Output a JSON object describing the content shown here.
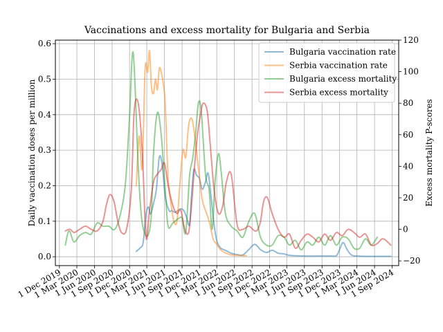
{
  "chart_data": {
    "type": "line",
    "title": "Vaccinations and excess mortality for Bulgaria and Serbia",
    "ylabel": "Daily vaccination doses per million",
    "ylabel_right": "Excess mortality P-scores",
    "ylim": [
      -0.025,
      0.61
    ],
    "ylim_right": [
      -23,
      120
    ],
    "x_range": [
      "2019-11-10",
      "2024-10-05"
    ],
    "grid": true,
    "legend_position": "top-right",
    "x_ticks": [
      "2019-12-01",
      "2020-03-01",
      "2020-06-01",
      "2020-09-01",
      "2020-12-01",
      "2021-03-01",
      "2021-06-01",
      "2021-09-01",
      "2021-12-01",
      "2022-03-01",
      "2022-06-01",
      "2022-09-01",
      "2022-12-01",
      "2023-03-01",
      "2023-06-01",
      "2023-09-01",
      "2023-12-01",
      "2024-03-01",
      "2024-06-01",
      "2024-09-01"
    ],
    "x_tick_labels": [
      "1 Dec 2019",
      "1 Mar 2020",
      "1 Jun 2020",
      "1 Sep 2020",
      "1 Dec 2020",
      "1 Mar 2021",
      "1 Jun 2021",
      "1 Sep 2021",
      "1 Dec 2021",
      "1 Mar 2022",
      "1 Jun 2022",
      "1 Sep 2022",
      "1 Dec 2022",
      "1 Mar 2023",
      "1 Jun 2023",
      "1 Sep 2023",
      "1 Dec 2023",
      "1 Mar 2024",
      "1 Jun 2024",
      "1 Sep 2024"
    ],
    "y_ticks": [
      0.0,
      0.1,
      0.2,
      0.3,
      0.4,
      0.5,
      0.6
    ],
    "y_tick_labels": [
      "0.0",
      "0.1",
      "0.2",
      "0.3",
      "0.4",
      "0.5",
      "0.6"
    ],
    "y_ticks_right": [
      -20,
      0,
      20,
      40,
      60,
      80,
      100,
      120
    ],
    "y_tick_labels_right": [
      "−20",
      "0",
      "20",
      "40",
      "60",
      "80",
      "100",
      "120"
    ],
    "series": [
      {
        "name": "Bulgaria vaccination rate",
        "axis": "left",
        "color": "#1f77b4",
        "x": [
          "2021-01-05",
          "2021-01-25",
          "2021-02-10",
          "2021-02-25",
          "2021-03-10",
          "2021-03-20",
          "2021-04-05",
          "2021-04-20",
          "2021-05-05",
          "2021-05-20",
          "2021-06-05",
          "2021-06-25",
          "2021-07-10",
          "2021-07-25",
          "2021-08-10",
          "2021-08-25",
          "2021-09-10",
          "2021-09-25",
          "2021-10-10",
          "2021-10-20",
          "2021-11-01",
          "2021-11-15",
          "2021-12-01",
          "2021-12-15",
          "2022-01-01",
          "2022-01-15",
          "2022-02-01",
          "2022-02-15",
          "2022-03-01",
          "2022-03-20",
          "2022-04-15",
          "2022-05-15",
          "2022-06-15",
          "2022-07-15",
          "2022-08-15",
          "2022-09-15",
          "2022-10-15",
          "2022-11-15",
          "2022-12-15",
          "2023-01-15",
          "2023-02-15",
          "2023-03-15",
          "2023-06-01",
          "2023-09-01",
          "2023-10-15",
          "2023-11-15",
          "2023-12-01",
          "2023-12-20",
          "2024-01-10",
          "2024-02-01",
          "2024-03-01",
          "2024-05-01",
          "2024-08-25"
        ],
        "y": [
          0.015,
          0.025,
          0.04,
          0.12,
          0.14,
          0.12,
          0.15,
          0.19,
          0.28,
          0.26,
          0.17,
          0.13,
          0.13,
          0.125,
          0.13,
          0.135,
          0.13,
          0.11,
          0.09,
          0.17,
          0.245,
          0.23,
          0.22,
          0.19,
          0.21,
          0.235,
          0.16,
          0.09,
          0.045,
          0.025,
          0.018,
          0.01,
          0.006,
          0.005,
          0.02,
          0.035,
          0.02,
          0.012,
          0.018,
          0.01,
          0.008,
          0.004,
          0.002,
          0.002,
          0.002,
          0.003,
          0.02,
          0.04,
          0.02,
          0.005,
          0.002,
          0.001,
          0.001
        ]
      },
      {
        "name": "Serbia vaccination rate",
        "axis": "left",
        "color": "#ff7f0e",
        "x": [
          "2021-01-05",
          "2021-01-20",
          "2021-02-05",
          "2021-02-20",
          "2021-03-05",
          "2021-03-15",
          "2021-03-25",
          "2021-04-05",
          "2021-04-15",
          "2021-04-25",
          "2021-05-05",
          "2021-05-15",
          "2021-05-25",
          "2021-06-05",
          "2021-06-20",
          "2021-07-05",
          "2021-07-20",
          "2021-08-05",
          "2021-08-20",
          "2021-09-05",
          "2021-09-20",
          "2021-10-05",
          "2021-10-20",
          "2021-11-01",
          "2021-11-15",
          "2021-12-01",
          "2021-12-15",
          "2022-01-01",
          "2022-01-20",
          "2022-02-10",
          "2022-03-01",
          "2022-03-20",
          "2022-04-10",
          "2022-05-01",
          "2022-05-20",
          "2022-06-15",
          "2022-07-15",
          "2022-08-01"
        ],
        "y": [
          0.2,
          0.34,
          0.25,
          0.53,
          0.52,
          0.58,
          0.48,
          0.46,
          0.5,
          0.47,
          0.53,
          0.52,
          0.49,
          0.43,
          0.22,
          0.15,
          0.1,
          0.1,
          0.2,
          0.3,
          0.28,
          0.37,
          0.39,
          0.36,
          0.3,
          0.22,
          0.16,
          0.13,
          0.1,
          0.05,
          0.035,
          0.02,
          0.012,
          0.007,
          0.005,
          0.004,
          0.003,
          0.003
        ]
      },
      {
        "name": "Bulgaria excess mortality",
        "axis": "right",
        "color": "#2ca02c",
        "x": [
          "2020-01-01",
          "2020-01-20",
          "2020-02-15",
          "2020-03-15",
          "2020-04-15",
          "2020-05-15",
          "2020-06-15",
          "2020-07-15",
          "2020-08-15",
          "2020-09-15",
          "2020-10-15",
          "2020-11-10",
          "2020-12-01",
          "2020-12-20",
          "2021-01-15",
          "2021-02-01",
          "2021-02-20",
          "2021-03-10",
          "2021-03-25",
          "2021-04-05",
          "2021-04-25",
          "2021-05-15",
          "2021-06-05",
          "2021-06-20",
          "2021-07-15",
          "2021-08-15",
          "2021-09-01",
          "2021-09-20",
          "2021-10-10",
          "2021-10-25",
          "2021-11-10",
          "2021-11-25",
          "2021-12-10",
          "2022-01-01",
          "2022-01-20",
          "2022-02-05",
          "2022-02-20",
          "2022-03-10",
          "2022-03-25",
          "2022-04-15",
          "2022-05-15",
          "2022-06-15",
          "2022-07-15",
          "2022-08-15",
          "2022-09-15",
          "2022-10-15",
          "2022-11-15",
          "2022-12-15",
          "2023-01-15",
          "2023-02-15",
          "2023-03-15",
          "2023-04-15",
          "2023-05-15",
          "2023-06-15",
          "2023-07-15",
          "2023-08-15",
          "2023-09-15",
          "2023-10-15",
          "2023-11-15",
          "2023-12-15",
          "2024-01-15",
          "2024-02-15",
          "2024-03-15",
          "2024-04-15",
          "2024-05-15",
          "2024-06-15"
        ],
        "y": [
          -10,
          -1,
          -8,
          -4,
          -2,
          -3,
          4,
          2,
          2,
          0,
          10,
          30,
          72,
          112,
          40,
          8,
          -3,
          -3,
          10,
          48,
          74,
          60,
          25,
          2,
          4,
          7,
          7,
          -2,
          34,
          44,
          60,
          80,
          75,
          35,
          25,
          0,
          30,
          48,
          35,
          10,
          2,
          -1,
          -5,
          5,
          10,
          -5,
          -10,
          -10,
          -4,
          -5,
          -10,
          -7,
          -13,
          -8,
          -10,
          -5,
          -10,
          -4,
          -10,
          -5,
          -6,
          -12,
          -12,
          -6,
          -10,
          -5
        ]
      },
      {
        "name": "Serbia excess mortality",
        "axis": "right",
        "color": "#d62728",
        "x": [
          "2020-01-01",
          "2020-01-25",
          "2020-02-15",
          "2020-03-15",
          "2020-04-15",
          "2020-05-15",
          "2020-06-15",
          "2020-07-15",
          "2020-08-01",
          "2020-08-20",
          "2020-09-10",
          "2020-10-01",
          "2020-10-20",
          "2020-11-15",
          "2020-12-10",
          "2020-12-25",
          "2021-01-15",
          "2021-02-05",
          "2021-02-25",
          "2021-03-15",
          "2021-04-05",
          "2021-04-25",
          "2021-05-15",
          "2021-06-01",
          "2021-06-20",
          "2021-07-15",
          "2021-08-05",
          "2021-08-25",
          "2021-09-15",
          "2021-10-05",
          "2021-10-20",
          "2021-11-05",
          "2021-11-20",
          "2021-12-05",
          "2021-12-20",
          "2022-01-10",
          "2022-01-25",
          "2022-02-15",
          "2022-03-10",
          "2022-04-01",
          "2022-04-20",
          "2022-05-15",
          "2022-06-15",
          "2022-07-15",
          "2022-08-15",
          "2022-09-15",
          "2022-10-01",
          "2022-10-15",
          "2022-11-01",
          "2022-11-20",
          "2022-12-15",
          "2023-01-15",
          "2023-02-15",
          "2023-03-15",
          "2023-04-15",
          "2023-05-15",
          "2023-06-15",
          "2023-07-15",
          "2023-08-15",
          "2023-09-15",
          "2023-10-15",
          "2023-11-15",
          "2023-12-15",
          "2024-01-15",
          "2024-02-15",
          "2024-03-15",
          "2024-04-15",
          "2024-05-15",
          "2024-06-15",
          "2024-07-15",
          "2024-08-25"
        ],
        "y": [
          -1,
          0,
          -2,
          0,
          2,
          0,
          -1,
          5,
          15,
          22,
          18,
          5,
          -2,
          0,
          25,
          75,
          80,
          50,
          -5,
          12,
          30,
          35,
          38,
          42,
          28,
          15,
          10,
          12,
          0,
          -2,
          15,
          40,
          60,
          72,
          80,
          75,
          55,
          25,
          10,
          15,
          30,
          35,
          3,
          0,
          2,
          -1,
          0,
          5,
          18,
          20,
          10,
          0,
          -5,
          -3,
          -12,
          -7,
          -3,
          -5,
          -8,
          -3,
          -7,
          -2,
          -4,
          0,
          -2,
          -5,
          -3,
          -10,
          -9,
          -6,
          -10
        ]
      }
    ]
  }
}
